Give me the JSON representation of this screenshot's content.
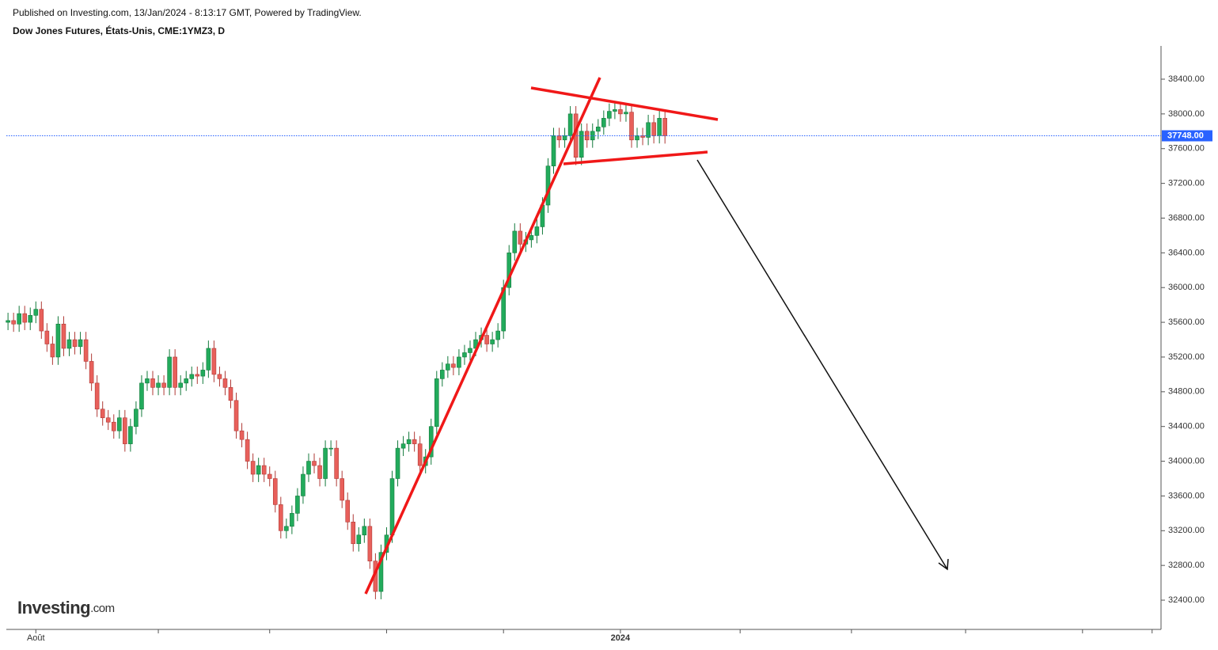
{
  "header": {
    "published": "Published on Investing.com, 13/Jan/2024 - 8:13:17 GMT, Powered by TradingView.",
    "instrument": "Dow Jones Futures, États-Unis, CME:1YMZ3, D"
  },
  "logo": {
    "name": "Investing",
    "suffix": ".com"
  },
  "chart_data": {
    "type": "candlestick",
    "up_color": "#22ab5c",
    "down_color": "#e8605b",
    "xlim": [
      -0.3,
      207.1
    ],
    "xticks": [
      {
        "value": 5,
        "label": "Août"
      },
      {
        "value": 27,
        "label": null
      },
      {
        "value": 47,
        "label": null
      },
      {
        "value": 68,
        "label": null
      },
      {
        "value": 89,
        "label": null
      },
      {
        "value": 110,
        "label": "2024"
      },
      {
        "value": 131.5,
        "label": null
      },
      {
        "value": 151.5,
        "label": null
      },
      {
        "value": 172,
        "label": null
      },
      {
        "value": 193,
        "label": null
      },
      {
        "value": 205.5,
        "label": null
      }
    ],
    "ylim": [
      32063,
      38783
    ],
    "yticks": [
      {
        "value": 32400,
        "label": "32400.00"
      },
      {
        "value": 32800,
        "label": "32800.00"
      },
      {
        "value": 33200,
        "label": "33200.00"
      },
      {
        "value": 33600,
        "label": "33600.00"
      },
      {
        "value": 34000,
        "label": "34000.00"
      },
      {
        "value": 34400,
        "label": "34400.00"
      },
      {
        "value": 34800,
        "label": "34800.00"
      },
      {
        "value": 35200,
        "label": "35200.00"
      },
      {
        "value": 35600,
        "label": "35600.00"
      },
      {
        "value": 36000,
        "label": "36000.00"
      },
      {
        "value": 36400,
        "label": "36400.00"
      },
      {
        "value": 36800,
        "label": "36800.00"
      },
      {
        "value": 37200,
        "label": "37200.00"
      },
      {
        "value": 37600,
        "label": "37600.00"
      },
      {
        "value": 38000,
        "label": "38000.00"
      },
      {
        "value": 38400,
        "label": "38400.00"
      }
    ],
    "last_price": 37748,
    "last_price_label": "37748.00",
    "last_price_color": "#2962ff",
    "open": [
      35600,
      35620,
      35580,
      35700,
      35600,
      35680,
      35750,
      35500,
      35350,
      35200,
      35580,
      35300,
      35400,
      35320,
      35400,
      35150,
      34900,
      34600,
      34500,
      34450,
      34350,
      34500,
      34200,
      34400,
      34600,
      34900,
      34950,
      34850,
      34900,
      34850,
      35200,
      34850,
      34900,
      34950,
      35000,
      34980,
      35050,
      35300,
      35000,
      34950,
      34850,
      34700,
      34350,
      34250,
      34000,
      33850,
      33950,
      33850,
      33800,
      33500,
      33200,
      33250,
      33400,
      33600,
      33850,
      34000,
      33950,
      33800,
      34150,
      34150,
      33800,
      33550,
      33300,
      33050,
      33150,
      33250,
      32850,
      32500,
      32950,
      33150,
      33800,
      34150,
      34200,
      34250,
      34200,
      33950,
      34050,
      34400,
      34950,
      35050,
      35120,
      35080,
      35200,
      35250,
      35300,
      35400,
      35450,
      35350,
      35400,
      35500,
      36000,
      36400,
      36650,
      36500,
      36550,
      36600,
      36700,
      36950,
      37400,
      37750,
      37700,
      37750,
      38000,
      37500,
      37800,
      37700,
      37800,
      37850,
      37950,
      38030,
      38050,
      38000,
      38020,
      37700,
      37750,
      37730,
      37900,
      37750,
      37950
    ],
    "high": [
      35710,
      35710,
      35790,
      35790,
      35770,
      35840,
      35840,
      35590,
      35440,
      35670,
      35670,
      35490,
      35490,
      35490,
      35490,
      35240,
      34990,
      34690,
      34590,
      34540,
      34590,
      34590,
      34490,
      34690,
      34990,
      35040,
      35040,
      34990,
      34990,
      35290,
      35290,
      34990,
      35040,
      35090,
      35090,
      35140,
      35390,
      35390,
      35090,
      35040,
      34940,
      34790,
      34440,
      34340,
      34090,
      34040,
      34040,
      33940,
      33890,
      33590,
      33340,
      33490,
      33690,
      33940,
      34090,
      34090,
      34040,
      34240,
      34240,
      34240,
      33890,
      33640,
      33390,
      33240,
      33340,
      33340,
      32940,
      33040,
      33240,
      33890,
      34240,
      34290,
      34340,
      34340,
      34290,
      34140,
      34490,
      35040,
      35140,
      35210,
      35210,
      35290,
      35340,
      35390,
      35490,
      35540,
      35540,
      35490,
      35590,
      36090,
      36490,
      36740,
      36740,
      36640,
      36690,
      36790,
      37040,
      37490,
      37840,
      37840,
      37840,
      38090,
      38090,
      37890,
      37890,
      37890,
      37940,
      38040,
      38120,
      38140,
      38140,
      38110,
      38110,
      37840,
      37840,
      37990,
      37990,
      38040,
      38040
    ],
    "low": [
      35510,
      35490,
      35490,
      35510,
      35510,
      35590,
      35410,
      35260,
      35110,
      35110,
      35210,
      35210,
      35230,
      35230,
      35060,
      34810,
      34510,
      34410,
      34360,
      34260,
      34260,
      34110,
      34110,
      34310,
      34510,
      34810,
      34760,
      34760,
      34760,
      34760,
      34760,
      34760,
      34810,
      34860,
      34890,
      34890,
      34960,
      34910,
      34860,
      34760,
      34610,
      34260,
      34160,
      33910,
      33760,
      33760,
      33760,
      33710,
      33410,
      33110,
      33110,
      33160,
      33310,
      33510,
      33760,
      33860,
      33710,
      33710,
      34060,
      33710,
      33460,
      33210,
      32960,
      32960,
      33060,
      32760,
      32410,
      32410,
      32860,
      33060,
      33710,
      34060,
      34110,
      34110,
      33860,
      33860,
      33960,
      34310,
      34860,
      34960,
      34990,
      34990,
      35110,
      35160,
      35210,
      35310,
      35260,
      35260,
      35310,
      35410,
      35910,
      36310,
      36410,
      36410,
      36460,
      36510,
      36610,
      36860,
      37310,
      37610,
      37610,
      37660,
      37410,
      37410,
      37610,
      37610,
      37710,
      37760,
      37860,
      37940,
      37910,
      37910,
      37610,
      37610,
      37640,
      37640,
      37660,
      37660,
      37658
    ],
    "close": [
      35620,
      35580,
      35700,
      35600,
      35680,
      35750,
      35500,
      35350,
      35200,
      35580,
      35300,
      35400,
      35320,
      35400,
      35150,
      34900,
      34600,
      34500,
      34450,
      34350,
      34500,
      34200,
      34400,
      34600,
      34900,
      34950,
      34850,
      34900,
      34850,
      35200,
      34850,
      34900,
      34950,
      35000,
      34980,
      35050,
      35300,
      35000,
      34950,
      34850,
      34700,
      34350,
      34250,
      34000,
      33850,
      33950,
      33850,
      33800,
      33500,
      33200,
      33250,
      33400,
      33600,
      33850,
      34000,
      33950,
      33800,
      34150,
      34150,
      33800,
      33550,
      33300,
      33050,
      33150,
      33250,
      32850,
      32500,
      32950,
      33150,
      33800,
      34150,
      34200,
      34250,
      34200,
      33950,
      34050,
      34400,
      34950,
      35050,
      35120,
      35080,
      35200,
      35250,
      35300,
      35400,
      35450,
      35350,
      35400,
      35500,
      36000,
      36400,
      36650,
      36500,
      36550,
      36600,
      36700,
      36950,
      37400,
      37750,
      37700,
      37750,
      38000,
      37500,
      37800,
      37700,
      37800,
      37850,
      37950,
      38030,
      38050,
      38000,
      38020,
      37700,
      37750,
      37730,
      37900,
      37750,
      37950,
      37748
    ]
  }
}
